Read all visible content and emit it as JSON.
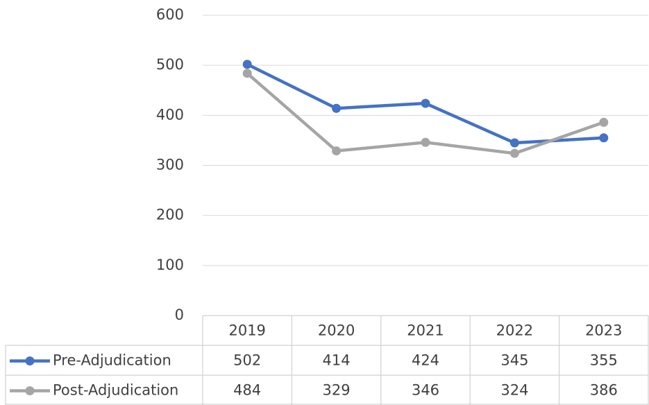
{
  "chart_data": {
    "type": "line",
    "categories": [
      "2019",
      "2020",
      "2021",
      "2022",
      "2023"
    ],
    "series": [
      {
        "name": "Pre-Adjudication",
        "color": "#4472c4",
        "values": [
          502,
          414,
          424,
          345,
          355
        ]
      },
      {
        "name": "Post-Adjudication",
        "color": "#a5a5a5",
        "values": [
          484,
          329,
          346,
          324,
          386
        ]
      }
    ],
    "ylim": [
      0,
      600
    ],
    "yticks": [
      0,
      100,
      200,
      300,
      400,
      500,
      600
    ],
    "grid": true,
    "data_table": true
  }
}
